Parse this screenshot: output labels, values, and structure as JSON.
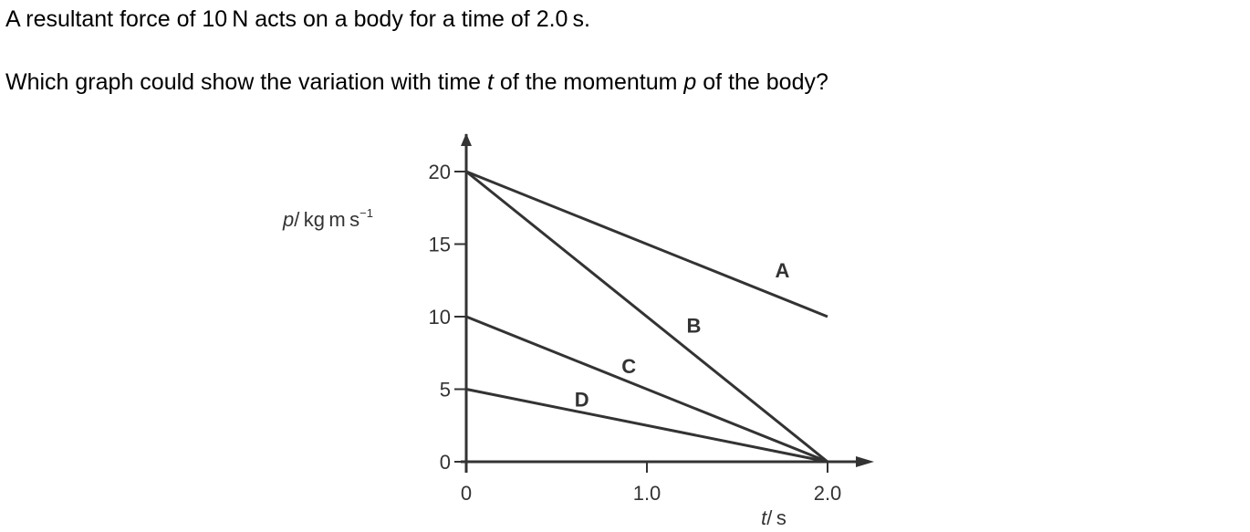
{
  "question": {
    "line1": "A resultant force of 10 N acts on a body for a time of 2.0 s.",
    "line2_part1": "Which graph could show the variation with time ",
    "line2_var_t": "t",
    "line2_part2": " of the momentum ",
    "line2_var_p": "p",
    "line2_part3": " of the body?"
  },
  "chart_data": {
    "type": "line",
    "xlabel": {
      "var": "t",
      "unit": "/ s"
    },
    "ylabel": {
      "var": "p",
      "unit": "/ kg m s",
      "sup": "−1"
    },
    "xlim": [
      0,
      2.0
    ],
    "ylim": [
      0,
      20
    ],
    "x_ticks": [
      {
        "value": 0,
        "label": "0"
      },
      {
        "value": 1.0,
        "label": "1.0"
      },
      {
        "value": 2.0,
        "label": "2.0"
      }
    ],
    "y_ticks": [
      {
        "value": 0,
        "label": "0"
      },
      {
        "value": 5,
        "label": "5"
      },
      {
        "value": 10,
        "label": "10"
      },
      {
        "value": 15,
        "label": "15"
      },
      {
        "value": 20,
        "label": "20"
      }
    ],
    "grid": false,
    "series": [
      {
        "name": "A",
        "x": [
          0,
          2.0
        ],
        "y": [
          20,
          10
        ],
        "label_at": [
          1.75,
          13.2
        ]
      },
      {
        "name": "B",
        "x": [
          0,
          2.0
        ],
        "y": [
          20,
          0
        ],
        "label_at": [
          1.26,
          9.4
        ]
      },
      {
        "name": "C",
        "x": [
          0,
          2.0
        ],
        "y": [
          10,
          0
        ],
        "label_at": [
          0.9,
          6.6
        ]
      },
      {
        "name": "D",
        "x": [
          0,
          2.0
        ],
        "y": [
          5,
          0
        ],
        "label_at": [
          0.64,
          4.3
        ]
      }
    ],
    "line_color": "#333333"
  }
}
